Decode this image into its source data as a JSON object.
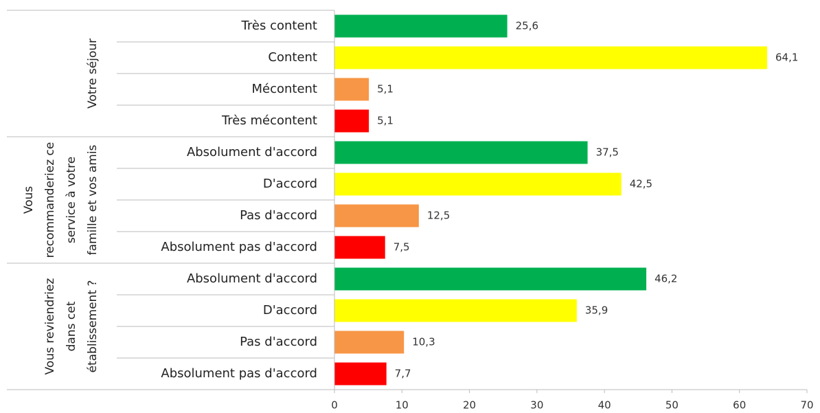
{
  "chart_data": {
    "type": "bar",
    "orientation": "horizontal",
    "colors": [
      "#00b050",
      "#ffff00",
      "#f79646",
      "#ff0000"
    ],
    "groups": [
      {
        "label": [
          "Votre séjour"
        ],
        "categories": [
          "Très content",
          "Content",
          "Mécontent",
          "Très mécontent"
        ],
        "values": [
          25.6,
          64.1,
          5.1,
          5.1
        ],
        "value_labels": [
          "25,6",
          "64,1",
          "5,1",
          "5,1"
        ]
      },
      {
        "label": [
          "Vous",
          "recommanderiez ce",
          "service à votre",
          "famille et vos amis"
        ],
        "categories": [
          "Absolument d'accord",
          "D'accord",
          "Pas d'accord",
          "Absolument pas d'accord"
        ],
        "values": [
          37.5,
          42.5,
          12.5,
          7.5
        ],
        "value_labels": [
          "37,5",
          "42,5",
          "12,5",
          "7,5"
        ]
      },
      {
        "label": [
          "Vous reviendriez",
          "dans cet",
          "établissement ?"
        ],
        "categories": [
          "Absolument d'accord",
          "D'accord",
          "Pas d'accord",
          "Absolument pas d'accord"
        ],
        "values": [
          46.2,
          35.9,
          10.3,
          7.7
        ],
        "value_labels": [
          "46,2",
          "35,9",
          "10,3",
          "7,7"
        ]
      }
    ],
    "xlim": [
      0,
      70
    ],
    "xticks": [
      0,
      10,
      20,
      30,
      40,
      50,
      60,
      70
    ]
  }
}
